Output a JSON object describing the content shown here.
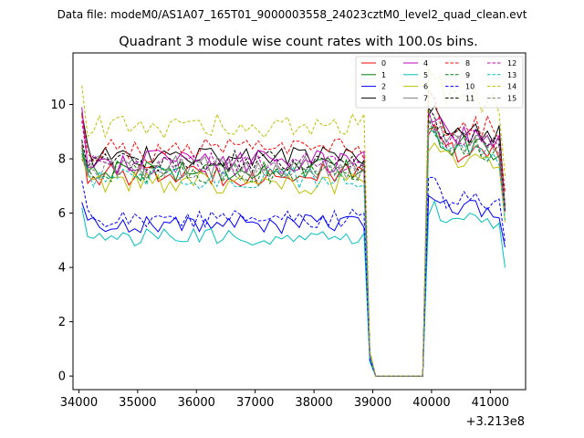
{
  "header": {
    "data_file": "Data file: modeM0/AS1A07_165T01_9000003558_24023cztM0_level2_quad_clean.evt",
    "title": "Quadrant 3 module wise count rates with 100.0s bins."
  },
  "chart_data": {
    "type": "line",
    "title": "Quadrant 3 module wise count rates with 100.0s bins.",
    "xlabel": "",
    "ylabel": "",
    "x_offset_label": "+3.213e8",
    "x_range": [
      33900,
      41600
    ],
    "ylim": [
      -0.5,
      11.9
    ],
    "x_ticks": [
      34000,
      35000,
      36000,
      37000,
      38000,
      39000,
      40000,
      41000
    ],
    "x_tick_labels": [
      "34000",
      "35000",
      "36000",
      "37000",
      "38000",
      "39000",
      "40000",
      "41000"
    ],
    "y_ticks": [
      0,
      2,
      4,
      6,
      8,
      10
    ],
    "y_tick_labels": [
      "0",
      "2",
      "4",
      "6",
      "8",
      "10"
    ],
    "grid": false,
    "legend_position": "top-right",
    "x_start": 34050,
    "x_step": 100,
    "profile": [
      {
        "x": 34050,
        "f": 1
      },
      {
        "x": 38850,
        "f": 1
      },
      {
        "x": 38950,
        "f": 0.1
      },
      {
        "x": 39050,
        "f": 0
      },
      {
        "x": 39850,
        "f": 0
      },
      {
        "x": 39950,
        "f": 1.22
      },
      {
        "x": 40050,
        "f": 1.2
      },
      {
        "x": 40250,
        "f": 1.12
      },
      {
        "x": 41150,
        "f": 1.1
      },
      {
        "x": 41250,
        "f": 0.8
      }
    ],
    "series": [
      {
        "name": "0",
        "color": "#ff0000",
        "dash": "solid",
        "base": 7.4,
        "start": 8.5
      },
      {
        "name": "1",
        "color": "#008000",
        "dash": "solid",
        "base": 7.6,
        "start": 8.2
      },
      {
        "name": "2",
        "color": "#0000ff",
        "dash": "solid",
        "base": 5.6,
        "start": 6.4
      },
      {
        "name": "3",
        "color": "#000000",
        "dash": "solid",
        "base": 8.1,
        "start": 9.7
      },
      {
        "name": "4",
        "color": "#bf00bf",
        "dash": "solid",
        "base": 7.9,
        "start": 9.9
      },
      {
        "name": "5",
        "color": "#00bfbf",
        "dash": "solid",
        "base": 5.1,
        "start": 6.2
      },
      {
        "name": "6",
        "color": "#bfbf00",
        "dash": "solid",
        "base": 7.1,
        "start": 8.1
      },
      {
        "name": "7",
        "color": "#808080",
        "dash": "solid",
        "base": 7.7,
        "start": 8.6
      },
      {
        "name": "8",
        "color": "#ff0000",
        "dash": "dashed",
        "base": 8.3,
        "start": 9.6
      },
      {
        "name": "9",
        "color": "#008000",
        "dash": "dashed",
        "base": 7.5,
        "start": 8.4
      },
      {
        "name": "10",
        "color": "#0000ff",
        "dash": "dashed",
        "base": 5.8,
        "start": 7.2
      },
      {
        "name": "11",
        "color": "#000000",
        "dash": "dashed",
        "base": 7.9,
        "start": 8.7
      },
      {
        "name": "12",
        "color": "#bf00bf",
        "dash": "dashed",
        "base": 7.8,
        "start": 9.4
      },
      {
        "name": "13",
        "color": "#00bfbf",
        "dash": "dashed",
        "base": 7.3,
        "start": 8.3
      },
      {
        "name": "14",
        "color": "#bfbf00",
        "dash": "dashed",
        "base": 9.2,
        "start": 10.7
      },
      {
        "name": "15",
        "color": "#808080",
        "dash": "dashed",
        "base": 7.6,
        "start": 8.0
      }
    ]
  }
}
